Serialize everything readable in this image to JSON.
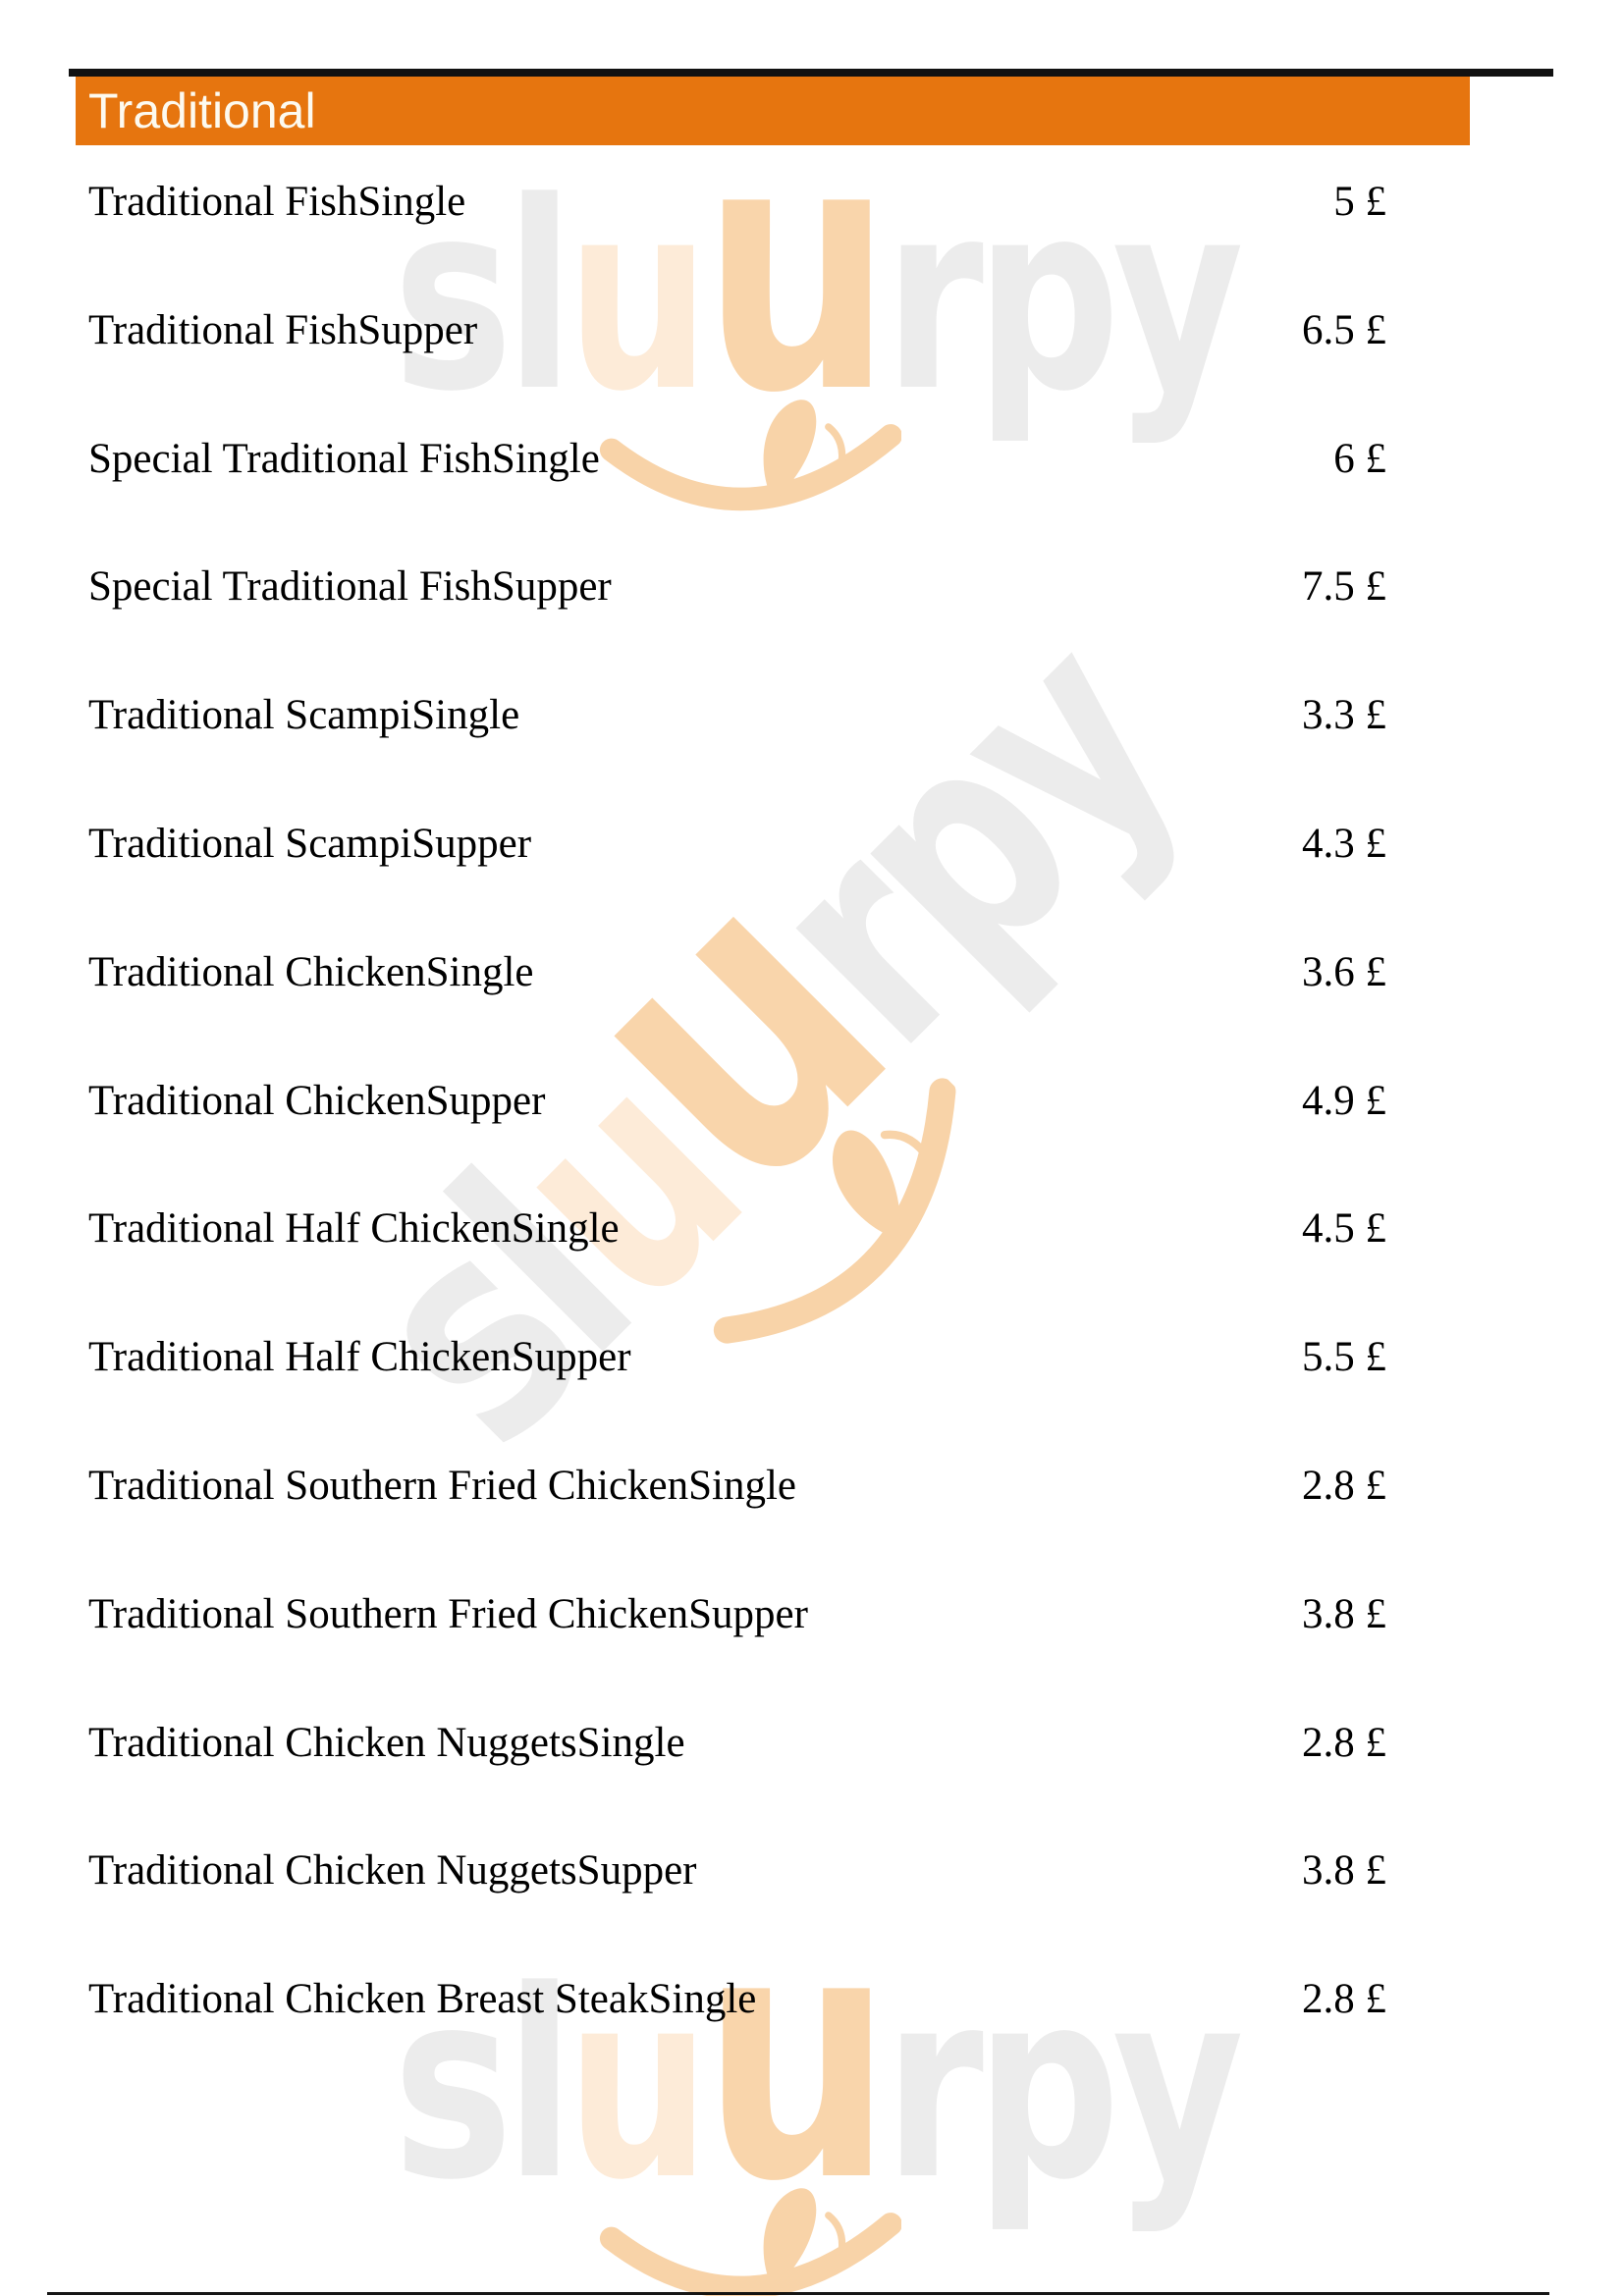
{
  "header": {
    "title": "Traditional"
  },
  "menu": {
    "currency": "£",
    "items": [
      {
        "name": "Traditional FishSingle",
        "price": "5"
      },
      {
        "name": "Traditional FishSupper",
        "price": "6.5"
      },
      {
        "name": "Special Traditional FishSingle",
        "price": "6"
      },
      {
        "name": "Special Traditional FishSupper",
        "price": "7.5"
      },
      {
        "name": "Traditional ScampiSingle",
        "price": "3.3"
      },
      {
        "name": "Traditional ScampiSupper",
        "price": "4.3"
      },
      {
        "name": "Traditional ChickenSingle",
        "price": "3.6"
      },
      {
        "name": "Traditional ChickenSupper",
        "price": "4.9"
      },
      {
        "name": "Traditional Half ChickenSingle",
        "price": "4.5"
      },
      {
        "name": "Traditional Half ChickenSupper",
        "price": "5.5"
      },
      {
        "name": "Traditional Southern Fried ChickenSingle",
        "price": "2.8"
      },
      {
        "name": "Traditional Southern Fried ChickenSupper",
        "price": "3.8"
      },
      {
        "name": "Traditional Chicken NuggetsSingle",
        "price": "2.8"
      },
      {
        "name": "Traditional Chicken NuggetsSupper",
        "price": "3.8"
      },
      {
        "name": "Traditional Chicken Breast SteakSingle",
        "price": "2.8"
      }
    ]
  },
  "watermark": {
    "brand": "sluurpy",
    "parts": [
      {
        "text": "sl",
        "color": "#ececec",
        "big": false
      },
      {
        "text": "u",
        "color": "#fdebd8",
        "big": false
      },
      {
        "text": "u",
        "color": "#f9d5ab",
        "big": true
      },
      {
        "text": "rpy",
        "color": "#ececec",
        "big": false
      }
    ]
  },
  "colors": {
    "accent": "#e6750f",
    "bar_black": "#111111",
    "text": "#000000",
    "header_text": "#fdfaf0",
    "rule": "#161616",
    "wm_smile": "#f8d3a8"
  }
}
